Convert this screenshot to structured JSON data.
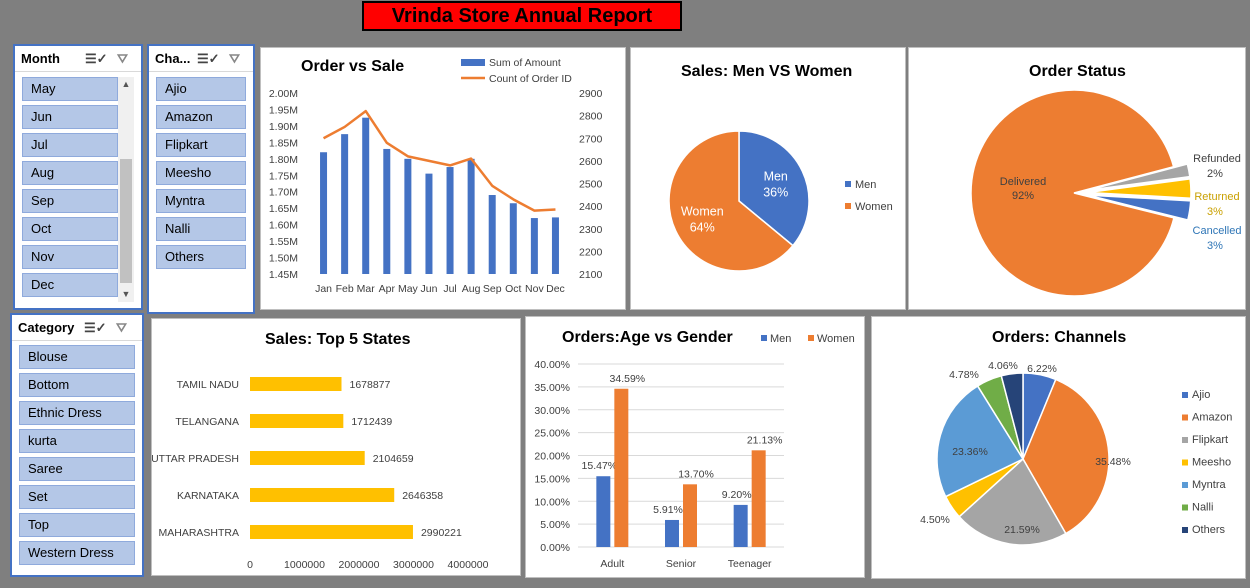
{
  "report_title": "Vrinda Store Annual Report",
  "colors": {
    "blue": "#4472c4",
    "orange": "#ed7d31",
    "gray": "#a5a5a5",
    "yellow": "#ffc000",
    "lightblue": "#5b9bd5",
    "green": "#70ad47",
    "navy": "#264478",
    "slicer_item": "#b4c7e7"
  },
  "slicers": {
    "month": {
      "title": "Month",
      "items": [
        "May",
        "Jun",
        "Jul",
        "Aug",
        "Sep",
        "Oct",
        "Nov",
        "Dec"
      ]
    },
    "channel": {
      "title": "Cha...",
      "items": [
        "Ajio",
        "Amazon",
        "Flipkart",
        "Meesho",
        "Myntra",
        "Nalli",
        "Others"
      ]
    },
    "category": {
      "title": "Category",
      "items": [
        "Blouse",
        "Bottom",
        "Ethnic Dress",
        "kurta",
        "Saree",
        "Set",
        "Top",
        "Western Dress"
      ]
    }
  },
  "icons": {
    "multiselect": "multi-select-icon",
    "clear_filter": "clear-filter-icon",
    "scroll_up": "scroll-up-icon",
    "scroll_down": "scroll-down-icon"
  },
  "chart_data": [
    {
      "id": "order_vs_sale",
      "type": "bar",
      "title": "Order vs Sale",
      "categories": [
        "Jan",
        "Feb",
        "Mar",
        "Apr",
        "May",
        "Jun",
        "Jul",
        "Aug",
        "Sep",
        "Oct",
        "Nov",
        "Dec"
      ],
      "series": [
        {
          "name": "Sum of Amount",
          "type": "bar",
          "axis": "left",
          "values": [
            1820000,
            1875000,
            1925000,
            1830000,
            1800000,
            1755000,
            1775000,
            1800000,
            1690000,
            1665000,
            1620000,
            1622000
          ]
        },
        {
          "name": "Count of Order ID",
          "type": "line",
          "axis": "right",
          "values": [
            2700,
            2750,
            2820,
            2680,
            2620,
            2600,
            2580,
            2610,
            2490,
            2430,
            2380,
            2385
          ]
        }
      ],
      "left_axis": {
        "ylim": [
          1450000,
          2000000
        ],
        "ticks": [
          "1.45M",
          "1.50M",
          "1.55M",
          "1.60M",
          "1.65M",
          "1.70M",
          "1.75M",
          "1.80M",
          "1.85M",
          "1.90M",
          "1.95M",
          "2.00M"
        ]
      },
      "right_axis": {
        "ylim": [
          2100,
          2900
        ],
        "ticks": [
          "2100",
          "2200",
          "2300",
          "2400",
          "2500",
          "2600",
          "2700",
          "2800",
          "2900"
        ]
      },
      "legend": "top-right"
    },
    {
      "id": "men_vs_women",
      "type": "pie",
      "title": "Sales: Men VS Women",
      "labels": [
        "Men",
        "Women"
      ],
      "values": [
        36,
        64
      ],
      "value_labels": [
        "36%",
        "64%"
      ],
      "legend": "right"
    },
    {
      "id": "order_status",
      "type": "pie",
      "title": "Order Status",
      "labels": [
        "Delivered",
        "Refunded",
        "Returned",
        "Cancelled"
      ],
      "values": [
        92,
        2,
        3,
        3
      ],
      "value_labels": [
        "92%",
        "2%",
        "3%",
        "3%"
      ]
    },
    {
      "id": "top_states",
      "type": "bar",
      "orientation": "horizontal",
      "title": "Sales: Top 5 States",
      "categories": [
        "TAMIL NADU",
        "TELANGANA",
        "UTTAR PRADESH",
        "KARNATAKA",
        "MAHARASHTRA"
      ],
      "values": [
        1678877,
        1712439,
        2104659,
        2646358,
        2990221
      ],
      "value_labels": [
        "1678877",
        "1712439",
        "2104659",
        "2646358",
        "2990221"
      ],
      "xlim": [
        0,
        4000000
      ],
      "ticks": [
        "0",
        "1000000",
        "2000000",
        "3000000",
        "4000000"
      ]
    },
    {
      "id": "age_vs_gender",
      "type": "bar",
      "title": "Orders:Age vs Gender",
      "categories": [
        "Adult",
        "Senior",
        "Teenager"
      ],
      "series": [
        {
          "name": "Men",
          "values": [
            15.47,
            5.91,
            9.2
          ],
          "value_labels": [
            "15.47%",
            "5.91%",
            "9.20%"
          ]
        },
        {
          "name": "Women",
          "values": [
            34.59,
            13.7,
            21.13
          ],
          "value_labels": [
            "34.59%",
            "13.70%",
            "21.13%"
          ]
        }
      ],
      "ylim": [
        0,
        40
      ],
      "ticks": [
        "0.00%",
        "5.00%",
        "10.00%",
        "15.00%",
        "20.00%",
        "25.00%",
        "30.00%",
        "35.00%",
        "40.00%"
      ],
      "legend": "top"
    },
    {
      "id": "channels",
      "type": "pie",
      "title": "Orders: Channels",
      "labels": [
        "Ajio",
        "Amazon",
        "Flipkart",
        "Meesho",
        "Myntra",
        "Nalli",
        "Others"
      ],
      "values": [
        6.22,
        35.48,
        21.59,
        4.5,
        23.36,
        4.78,
        4.06
      ],
      "value_labels": [
        "6.22%",
        "35.48%",
        "21.59%",
        "4.50%",
        "23.36%",
        "4.78%",
        "4.06%"
      ],
      "legend": "right"
    }
  ]
}
